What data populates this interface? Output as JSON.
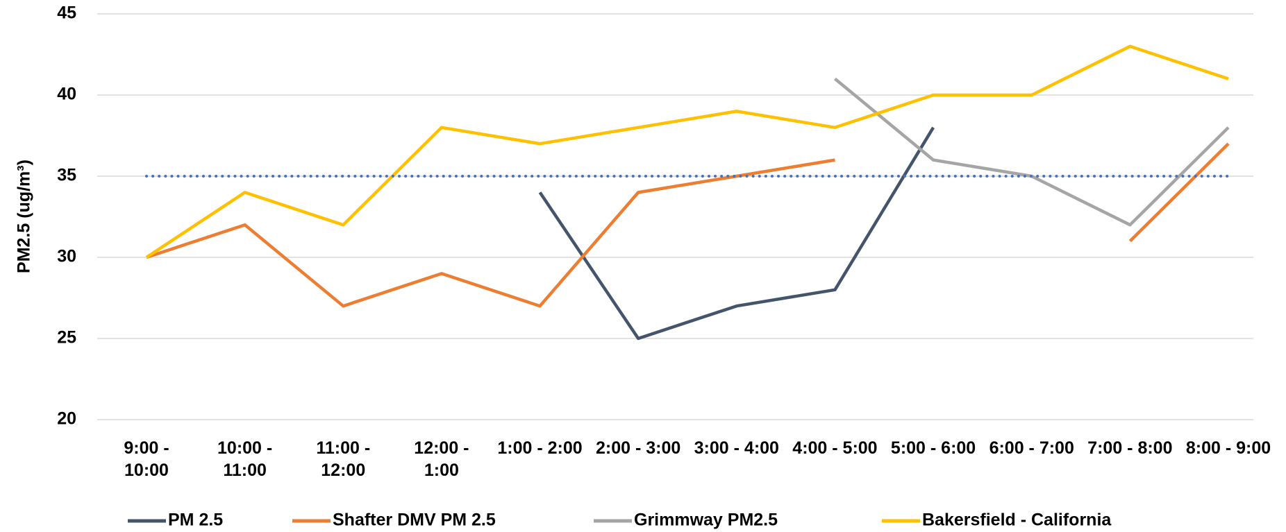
{
  "chart_data": {
    "type": "line",
    "y_label": "PM2.5 (ug/m³)",
    "categories": [
      "9:00 - 10:00",
      "10:00 - 11:00",
      "11:00 - 12:00",
      "12:00 - 1:00",
      "1:00 - 2:00",
      "2:00 - 3:00",
      "3:00 - 4:00",
      "4:00 - 5:00",
      "5:00 - 6:00",
      "6:00 - 7:00",
      "7:00 - 8:00",
      "8:00 - 9:00"
    ],
    "series": [
      {
        "name": "PM 2.5",
        "color": "#44546a",
        "values": [
          null,
          null,
          null,
          null,
          34,
          25,
          27,
          28,
          38,
          null,
          null,
          null
        ]
      },
      {
        "name": "Shafter DMV PM 2.5",
        "color": "#ed7d31",
        "values": [
          30,
          32,
          27,
          29,
          27,
          34,
          35,
          36,
          null,
          null,
          31,
          37
        ]
      },
      {
        "name": "Grimmway  PM2.5",
        "color": "#a5a5a5",
        "values": [
          null,
          null,
          null,
          null,
          null,
          null,
          null,
          41,
          36,
          35,
          32,
          38
        ]
      },
      {
        "name": "Bakersfield - California",
        "color": "#ffc000",
        "values": [
          30,
          34,
          32,
          38,
          37,
          38,
          39,
          38,
          40,
          40,
          43,
          41
        ]
      },
      {
        "color": "#4472c4",
        "dotted": true,
        "values": [
          35,
          35,
          35,
          35,
          35,
          35,
          35,
          35,
          35,
          35,
          35,
          35
        ]
      }
    ],
    "ylim": [
      20,
      45
    ],
    "yticks": [
      20,
      25,
      30,
      35,
      40,
      45
    ],
    "grid": true,
    "legend": "bottom"
  }
}
